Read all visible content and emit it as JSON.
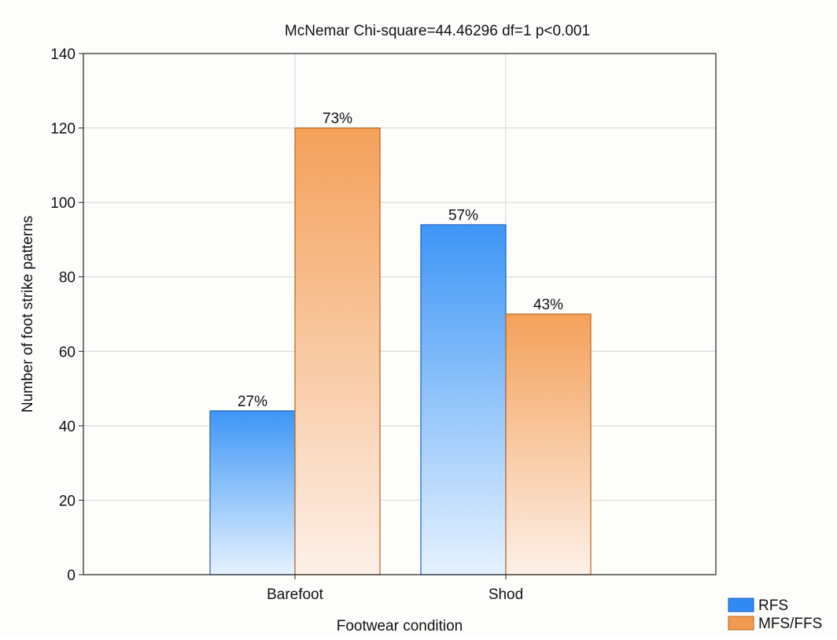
{
  "chart_data": {
    "type": "bar",
    "title": "McNemar Chi-square=44.46296 df=1 p<0.001",
    "xlabel": "Footwear condition",
    "ylabel": "Number of foot strike patterns",
    "ylim": [
      0,
      140
    ],
    "yticks": [
      0,
      20,
      40,
      60,
      80,
      100,
      120,
      140
    ],
    "categories": [
      "Barefoot",
      "Shod"
    ],
    "series": [
      {
        "name": "RFS",
        "values": [
          44,
          94
        ],
        "labels": [
          "27%",
          "57%"
        ],
        "color": "#4a9cf7"
      },
      {
        "name": "MFS/FFS",
        "values": [
          120,
          70
        ],
        "labels": [
          "73%",
          "43%"
        ],
        "color": "#f4a460"
      }
    ],
    "grid": true,
    "legend": "bottom-right"
  }
}
